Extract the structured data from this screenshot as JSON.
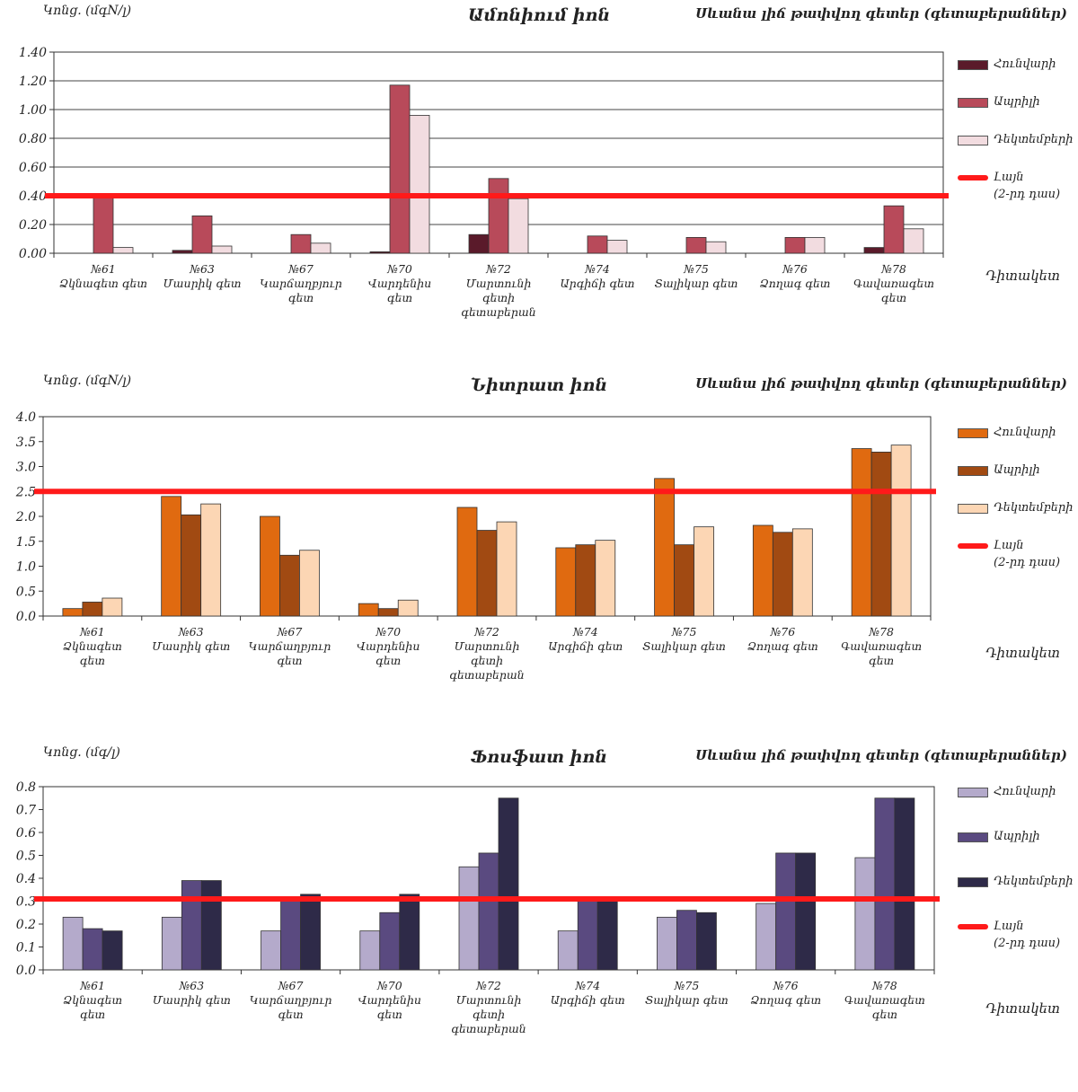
{
  "chart_data": [
    {
      "type": "bar",
      "title": "Ամոնիում իոն",
      "subtitle": "Սևանա լիճ թափվող գետեր (գետաբերաններ)",
      "ylabel": "Կոնց. (մգN/լ)",
      "xlabel": "Դիտակետ",
      "ylim": [
        0,
        1.4
      ],
      "yticks": [
        "0.00",
        "0.20",
        "0.40",
        "0.60",
        "0.80",
        "1.00",
        "1.20",
        "1.40"
      ],
      "categories": [
        [
          "№61",
          "Ձկնագետ գետ"
        ],
        [
          "№63",
          "Մասրիկ գետ"
        ],
        [
          "№67",
          "Կարճաղբյուր",
          "գետ"
        ],
        [
          "№70",
          "Վարդենիս",
          "գետ"
        ],
        [
          "№72",
          "Մարտունի",
          "գետի",
          "գետաբերան"
        ],
        [
          "№74",
          "Արգիճի գետ"
        ],
        [
          "№75",
          "Տալիկար գետ"
        ],
        [
          "№76",
          "Ձողագ գետ"
        ],
        [
          "№78",
          "Գավառագետ",
          "գետ"
        ]
      ],
      "series": [
        {
          "name": "Հունվարի",
          "color": "#5a1a2a",
          "values": [
            0,
            0.02,
            0,
            0.01,
            0.13,
            0,
            0,
            0,
            0.04
          ]
        },
        {
          "name": "Ապրիլի",
          "color": "#b84a5a",
          "values": [
            0.39,
            0.26,
            0.13,
            1.17,
            0.52,
            0.12,
            0.11,
            0.11,
            0.33
          ]
        },
        {
          "name": "Դեկտեմբերի",
          "color": "#f2dce0",
          "values": [
            0.04,
            0.05,
            0.07,
            0.96,
            0.38,
            0.09,
            0.08,
            0.11,
            0.17
          ]
        }
      ],
      "threshold": {
        "name": "Լայն\n(2-րդ դաս)",
        "value": 0.4,
        "color": "#ff1a1a"
      },
      "legend": "right",
      "grid": true
    },
    {
      "type": "bar",
      "title": "Նիտրատ իոն",
      "subtitle": "Սևանա լիճ թափվող գետեր (գետաբերաններ)",
      "ylabel": "Կոնց. (մգN/լ)",
      "xlabel": "Դիտակետ",
      "ylim": [
        0,
        4.0
      ],
      "yticks": [
        "0.0",
        "0.5",
        "1.0",
        "1.5",
        "2.0",
        "2.5",
        "3.0",
        "3.5",
        "4.0"
      ],
      "categories": [
        [
          "№61",
          "Ձկնագետ",
          "գետ"
        ],
        [
          "№63",
          "Մասրիկ գետ"
        ],
        [
          "№67",
          "Կարճաղբյուր",
          "գետ"
        ],
        [
          "№70",
          "Վարդենիս",
          "գետ"
        ],
        [
          "№72",
          "Մարտունի",
          "գետի",
          "գետաբերան"
        ],
        [
          "№74",
          "Արգիճի գետ"
        ],
        [
          "№75",
          "Տալիկար գետ"
        ],
        [
          "№76",
          "Ձողագ գետ"
        ],
        [
          "№78",
          "Գավառագետ",
          "գետ"
        ]
      ],
      "series": [
        {
          "name": "Հունվարի",
          "color": "#e06a10",
          "values": [
            0.15,
            2.4,
            2.0,
            0.25,
            2.18,
            1.37,
            2.76,
            1.82,
            3.36
          ]
        },
        {
          "name": "Ապրիլի",
          "color": "#a14a12",
          "values": [
            0.28,
            2.03,
            1.22,
            0.15,
            1.72,
            1.43,
            1.43,
            1.68,
            3.29
          ]
        },
        {
          "name": "Դեկտեմբերի",
          "color": "#fcd6b4",
          "values": [
            0.36,
            2.25,
            1.32,
            0.32,
            1.89,
            1.52,
            1.79,
            1.75,
            3.43
          ]
        }
      ],
      "threshold": {
        "name": "Լայն\n(2-րդ դաս)",
        "value": 2.5,
        "color": "#ff1a1a"
      },
      "legend": "right",
      "grid": false
    },
    {
      "type": "bar",
      "title": "Ֆոսֆատ իոն",
      "subtitle": "Սևանա լիճ թափվող գետեր (գետաբերաններ)",
      "ylabel": "Կոնց. (մգ/լ)",
      "xlabel": "Դիտակետ",
      "ylim": [
        0,
        0.8
      ],
      "yticks": [
        "0.0",
        "0.1",
        "0.2",
        "0.3",
        "0.4",
        "0.5",
        "0.6",
        "0.7",
        "0.8"
      ],
      "categories": [
        [
          "№61",
          "Ձկնագետ",
          "գետ"
        ],
        [
          "№63",
          "Մասրիկ գետ"
        ],
        [
          "№67",
          "Կարճաղբյուր",
          "գետ"
        ],
        [
          "№70",
          "Վարդենիս",
          "գետ"
        ],
        [
          "№72",
          "Մարտունի",
          "գետի",
          "գետաբերան"
        ],
        [
          "№74",
          "Արգիճի գետ"
        ],
        [
          "№75",
          "Տալիկար գետ"
        ],
        [
          "№76",
          "Ձողագ գետ"
        ],
        [
          "№78",
          "Գավառագետ",
          "գետ"
        ]
      ],
      "series": [
        {
          "name": "Հունվարի",
          "color": "#b4aacb",
          "values": [
            0.23,
            0.23,
            0.17,
            0.17,
            0.45,
            0.17,
            0.23,
            0.29,
            0.49
          ]
        },
        {
          "name": "Ապրիլի",
          "color": "#5a4a80",
          "values": [
            0.18,
            0.39,
            0.31,
            0.25,
            0.51,
            0.31,
            0.26,
            0.51,
            0.75
          ]
        },
        {
          "name": "Դեկտեմբերի",
          "color": "#2e2a48",
          "values": [
            0.17,
            0.39,
            0.33,
            0.33,
            0.75,
            0.31,
            0.25,
            0.51,
            0.75
          ]
        }
      ],
      "threshold": {
        "name": "Լայն\n(2-րդ դաս)",
        "value": 0.31,
        "color": "#ff1a1a"
      },
      "legend": "right",
      "grid": false
    }
  ]
}
